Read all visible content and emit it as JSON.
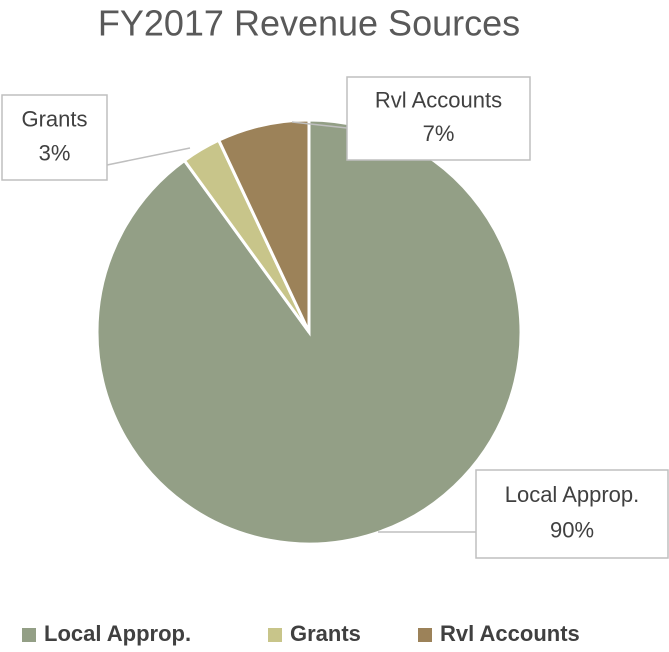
{
  "chart_data": {
    "type": "pie",
    "title": "FY2017 Revenue Sources",
    "categories": [
      "Local Approp.",
      "Grants",
      "Rvl Accounts"
    ],
    "values": [
      90,
      3,
      7
    ],
    "value_labels": [
      "90%",
      "3%",
      "7%"
    ],
    "colors": [
      "#939f86",
      "#c8c58a",
      "#9c8259"
    ],
    "legend": "bottom"
  }
}
